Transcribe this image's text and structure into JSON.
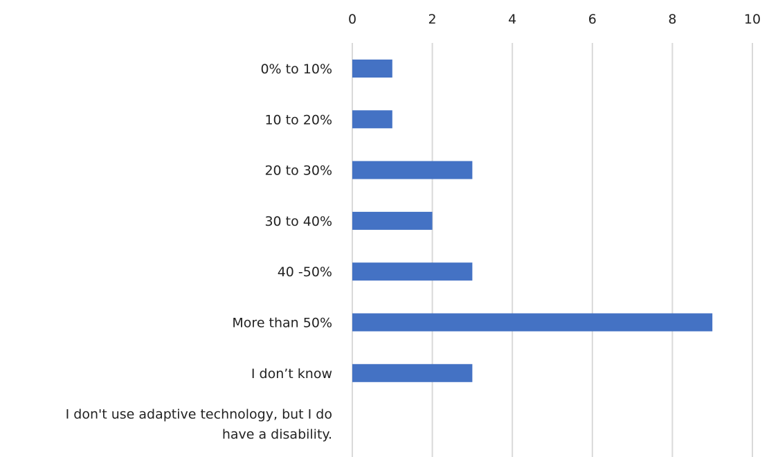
{
  "chart_data": {
    "type": "bar",
    "orientation": "horizontal",
    "categories": [
      "0% to 10%",
      "10 to 20%",
      "20 to 30%",
      "30 to 40%",
      "40 -50%",
      "More than 50%",
      "I don’t know",
      "I don't use adaptive technology, but I do have a disability."
    ],
    "category_label_lines": [
      [
        "0% to 10%"
      ],
      [
        "10 to 20%"
      ],
      [
        "20 to 30%"
      ],
      [
        "30 to 40%"
      ],
      [
        "40 -50%"
      ],
      [
        "More than 50%"
      ],
      [
        "I don’t know"
      ],
      [
        "I don't use adaptive technology, but I do",
        "have a disability."
      ]
    ],
    "values": [
      1,
      1,
      3,
      2,
      3,
      9,
      3,
      0
    ],
    "xlim": [
      0,
      10
    ],
    "xticks": [
      0,
      2,
      4,
      6,
      8,
      10
    ],
    "x_axis_position": "top",
    "grid": true,
    "title": "",
    "xlabel": "",
    "ylabel": "",
    "bar_color": "#4472c4",
    "grid_color": "#d9d9d9"
  }
}
